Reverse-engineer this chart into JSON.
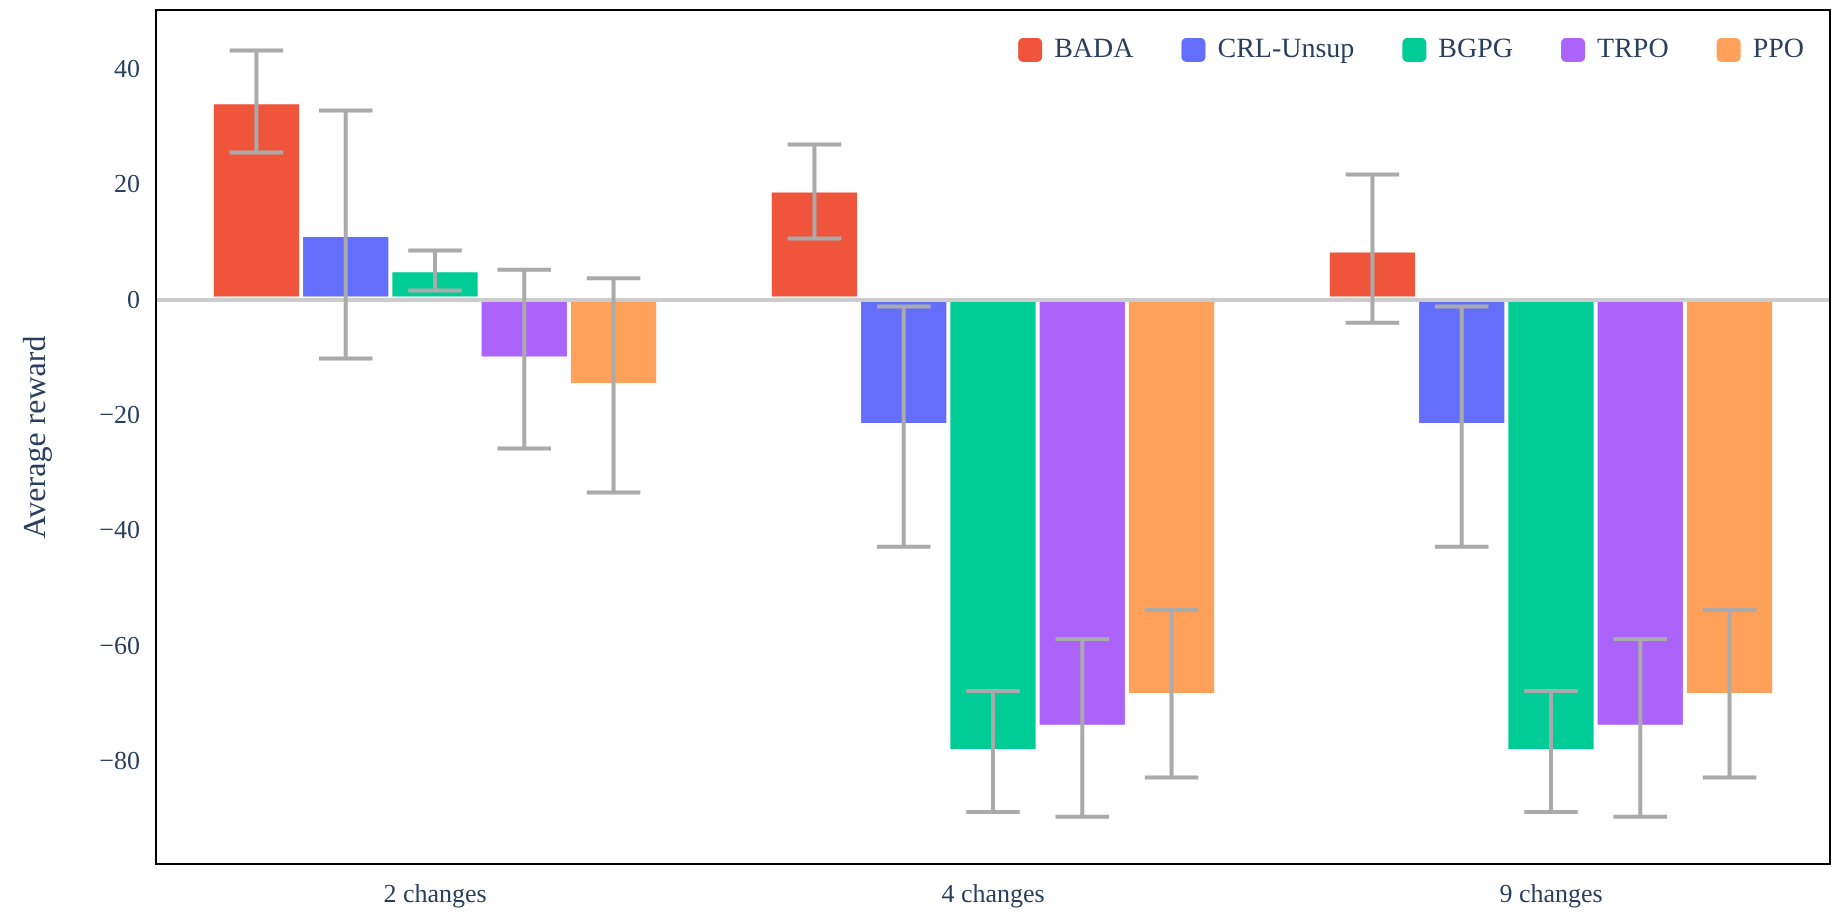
{
  "chart_data": {
    "type": "bar",
    "ylabel": "Average reward",
    "categories": [
      "2 changes",
      "4 changes",
      "9 changes"
    ],
    "series": [
      {
        "name": "BADA",
        "color": "#ef553b",
        "values": [
          34,
          18.7,
          8.3
        ],
        "errors": [
          [
            25.3,
            43
          ],
          [
            10.4,
            26.7
          ],
          [
            -4.2,
            21.5
          ]
        ]
      },
      {
        "name": "CRL-Unsup",
        "color": "#636efa",
        "values": [
          11,
          -21.9,
          -21.9
        ],
        "errors": [
          [
            -10.4,
            32.6
          ],
          [
            -43,
            -1.4
          ],
          [
            -43,
            -1.4
          ]
        ]
      },
      {
        "name": "BGPG",
        "color": "#00cc96",
        "values": [
          4.9,
          -78.4,
          -78.4
        ],
        "errors": [
          [
            1.4,
            8.3
          ],
          [
            -89,
            -68
          ],
          [
            -89,
            -68
          ]
        ]
      },
      {
        "name": "TRPO",
        "color": "#ab63fa",
        "values": [
          -10.4,
          -74.2,
          -74.2
        ],
        "errors": [
          [
            -26,
            5
          ],
          [
            -89.8,
            -59
          ],
          [
            -89.8,
            -59
          ]
        ]
      },
      {
        "name": "PPO",
        "color": "#ffa15a",
        "values": [
          -15,
          -68.7,
          -68.7
        ],
        "errors": [
          [
            -33.6,
            3.5
          ],
          [
            -83,
            -54
          ],
          [
            -83,
            -54
          ]
        ]
      }
    ],
    "ylim": [
      -98,
      50
    ],
    "yticks": [
      -80,
      -60,
      -40,
      -20,
      0,
      20,
      40
    ],
    "ref_lines": [
      {
        "axis": "y",
        "value": 0,
        "color": "#cccccc"
      }
    ],
    "grid": false,
    "legend": "top right"
  }
}
